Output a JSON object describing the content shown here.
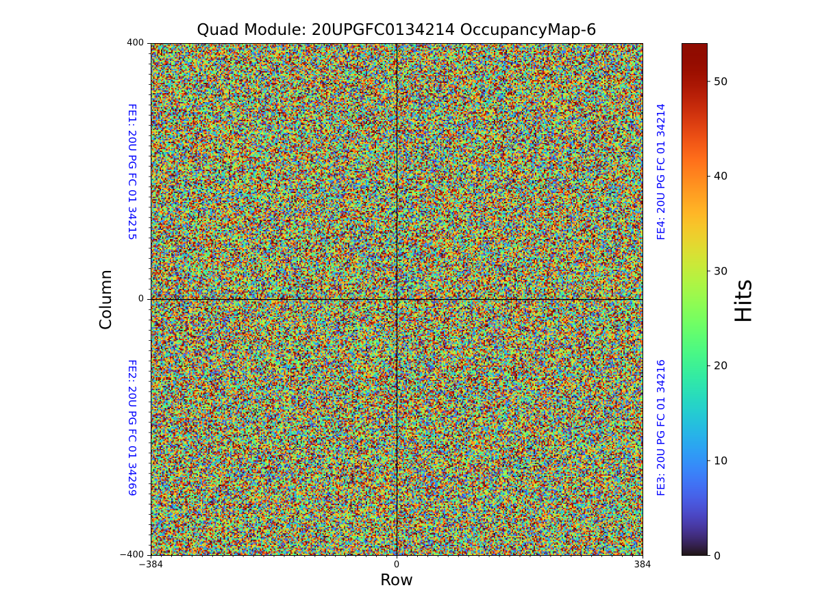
{
  "chart_data": {
    "type": "heatmap",
    "title": "Quad Module: 20UPGFC0134214 OccupancyMap-6",
    "xlabel": "Row",
    "ylabel": "Column",
    "xlim": [
      -384,
      384
    ],
    "ylim": [
      -400,
      400
    ],
    "x_ticks": [
      -384,
      0,
      384
    ],
    "x_tick_labels": [
      "−384",
      "0",
      "384"
    ],
    "y_ticks": [
      400,
      0,
      -400
    ],
    "y_tick_labels": [
      "400",
      "0",
      "−400"
    ],
    "colormap": "turbo",
    "color_range": [
      0,
      54
    ],
    "colorbar": {
      "label": "Hits",
      "ticks": [
        0,
        10,
        20,
        30,
        40,
        50
      ],
      "tick_labels": [
        "0",
        "10",
        "20",
        "30",
        "40",
        "50"
      ]
    },
    "divider_lines": {
      "x": 0,
      "y": 0
    },
    "frontends": [
      {
        "id": "FE1",
        "label": "FE1: 20U PG FC 01 34215",
        "quadrant": "top-left"
      },
      {
        "id": "FE2",
        "label": "FE2: 20U PG FC 01 34269",
        "quadrant": "bottom-left"
      },
      {
        "id": "FE3",
        "label": "FE3: 20U PG FC 01 34216",
        "quadrant": "bottom-right"
      },
      {
        "id": "FE4",
        "label": "FE4: 20U PG FC 01 34214",
        "quadrant": "top-right"
      }
    ],
    "distribution": "approximately uniform random hit counts from 0 to 54 across all pixels"
  },
  "colors": {
    "fe_label": "#0000ff",
    "divider": "#000000"
  }
}
